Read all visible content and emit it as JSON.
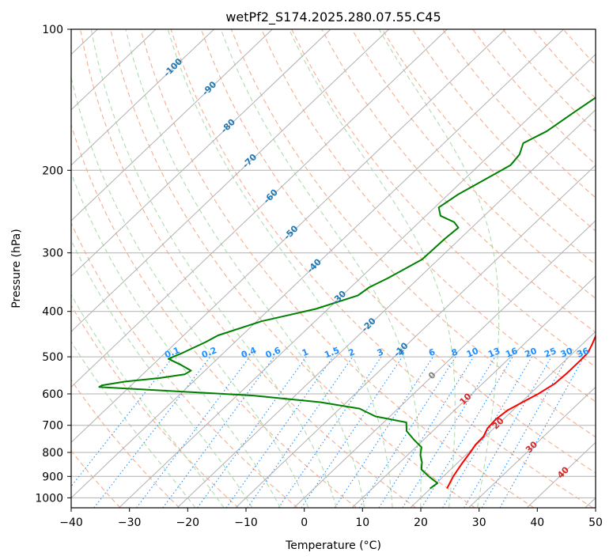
{
  "chart_data": {
    "type": "line",
    "subtype": "skew-T log-P diagram",
    "title": "wetPf2_S174.2025.280.07.55.C45",
    "xlabel": "Temperature (°C)",
    "ylabel": "Pressure (hPa)",
    "xlim": [
      -40,
      50
    ],
    "ylim": [
      1050,
      100
    ],
    "x_ticks": [
      -40,
      -30,
      -20,
      -10,
      0,
      10,
      20,
      30,
      40,
      50
    ],
    "y_ticks": [
      100,
      200,
      300,
      400,
      500,
      600,
      700,
      800,
      900,
      1000
    ],
    "grid": true,
    "series": [
      {
        "name": "temperature",
        "color": "#ff0000",
        "points": [
          [
            22.8,
            955
          ],
          [
            22.3,
            930
          ],
          [
            21.7,
            900
          ],
          [
            20.8,
            840
          ],
          [
            20.3,
            800
          ],
          [
            19.8,
            770
          ],
          [
            19.7,
            740
          ],
          [
            18.9,
            710
          ],
          [
            18.7,
            680
          ],
          [
            19.1,
            650
          ],
          [
            20.2,
            625
          ],
          [
            21.4,
            600
          ],
          [
            22.4,
            570
          ],
          [
            22.6,
            540
          ],
          [
            22.6,
            510
          ],
          [
            22.5,
            490
          ],
          [
            21.7,
            470
          ],
          [
            20.5,
            445
          ],
          [
            18.8,
            420
          ],
          [
            15.7,
            380
          ],
          [
            14.0,
            360
          ],
          [
            11.9,
            340
          ],
          [
            8.2,
            310
          ],
          [
            4.4,
            285
          ],
          [
            2.0,
            265
          ],
          [
            2.1,
            255
          ],
          [
            2.7,
            245
          ],
          [
            2.2,
            240
          ],
          [
            -1.2,
            220
          ],
          [
            -4.6,
            200
          ],
          [
            -6.5,
            190
          ],
          [
            -6.7,
            180
          ],
          [
            -6.2,
            170
          ],
          [
            -7.5,
            155
          ],
          [
            -10.1,
            140
          ],
          [
            -13.4,
            125
          ],
          [
            -15.3,
            115
          ],
          [
            -15.9,
            110
          ],
          [
            -16.8,
            100
          ]
        ]
      },
      {
        "name": "dewpoint",
        "color": "#008000",
        "points": [
          [
            19.9,
            955
          ],
          [
            20.2,
            930
          ],
          [
            17.5,
            900
          ],
          [
            15.0,
            870
          ],
          [
            13.8,
            840
          ],
          [
            12.2,
            810
          ],
          [
            11.0,
            780
          ],
          [
            8.2,
            750
          ],
          [
            5.5,
            720
          ],
          [
            3.9,
            690
          ],
          [
            -2.5,
            670
          ],
          [
            -6.6,
            645
          ],
          [
            -14.5,
            625
          ],
          [
            -27.2,
            605
          ],
          [
            -55.2,
            580
          ],
          [
            -55.0,
            575
          ],
          [
            -51.8,
            565
          ],
          [
            -46.5,
            555
          ],
          [
            -42.8,
            545
          ],
          [
            -42.4,
            535
          ],
          [
            -45.2,
            520
          ],
          [
            -48.4,
            505
          ],
          [
            -47.0,
            490
          ],
          [
            -45.0,
            465
          ],
          [
            -44.1,
            450
          ],
          [
            -39.2,
            420
          ],
          [
            -32.1,
            395
          ],
          [
            -27.3,
            370
          ],
          [
            -26.8,
            355
          ],
          [
            -25.3,
            340
          ],
          [
            -22.8,
            310
          ],
          [
            -22.6,
            280
          ],
          [
            -22.3,
            265
          ],
          [
            -24.0,
            258
          ],
          [
            -27.5,
            250
          ],
          [
            -29.3,
            240
          ],
          [
            -28.3,
            225
          ],
          [
            -26.5,
            210
          ],
          [
            -24.6,
            195
          ],
          [
            -25.0,
            185
          ],
          [
            -26.4,
            175
          ],
          [
            -24.5,
            165
          ],
          [
            -23.2,
            150
          ],
          [
            -21.1,
            130
          ],
          [
            -20.1,
            120
          ],
          [
            -18.3,
            110
          ],
          [
            -16.8,
            100
          ]
        ]
      }
    ],
    "dry_adiabats_K": [
      230,
      240,
      250,
      260,
      270,
      280,
      290,
      300,
      310,
      320,
      330,
      340,
      350,
      360,
      370,
      380,
      390,
      400,
      410,
      420,
      430,
      440,
      450,
      460,
      470,
      480,
      490,
      500
    ],
    "moist_adiabats_C": [
      -20,
      -15,
      -10,
      -5,
      0,
      5,
      10,
      15,
      20,
      25,
      30
    ],
    "mixing_ratio_lines_gkg": [
      0.1,
      0.2,
      0.4,
      0.6,
      1,
      1.5,
      2,
      3,
      4,
      6,
      8,
      10,
      13,
      16,
      20,
      25,
      30,
      36
    ],
    "mixing_ratio_labels": [
      "0.1",
      "0.2",
      "0.4",
      "0.6",
      "1",
      "1.5",
      "2",
      "3",
      "4",
      "6",
      "8",
      "10",
      "13",
      "16",
      "20",
      "25",
      "30",
      "36"
    ],
    "isotherm_labels": [
      {
        "text": "-100",
        "value": -100,
        "p": 120
      },
      {
        "text": "-90",
        "value": -90,
        "p": 133
      },
      {
        "text": "-80",
        "value": -80,
        "p": 160
      },
      {
        "text": "-70",
        "value": -70,
        "p": 190
      },
      {
        "text": "-60",
        "value": -60,
        "p": 226
      },
      {
        "text": "-50",
        "value": -50,
        "p": 270
      },
      {
        "text": "-40",
        "value": -40,
        "p": 318
      },
      {
        "text": "-30",
        "value": -30,
        "p": 372
      },
      {
        "text": "-20",
        "value": -20,
        "p": 425
      },
      {
        "text": "-10",
        "value": -10,
        "p": 480
      },
      {
        "text": "0",
        "value": 0,
        "p": 545
      },
      {
        "text": "10",
        "value": 10,
        "p": 612
      },
      {
        "text": "20",
        "value": 20,
        "p": 690
      },
      {
        "text": "30",
        "value": 30,
        "p": 775
      },
      {
        "text": "40",
        "value": 40,
        "p": 878
      }
    ],
    "colors": {
      "isotherm_cold": "#1f77b4",
      "isotherm_zero": "#808080",
      "isotherm_warm": "#d62728",
      "mixing_ratio": "#1e90ff",
      "dry_adiabat": "#f4a582",
      "moist_adiabat": "#a6d8a6",
      "grid": "#b0b0b0"
    }
  }
}
